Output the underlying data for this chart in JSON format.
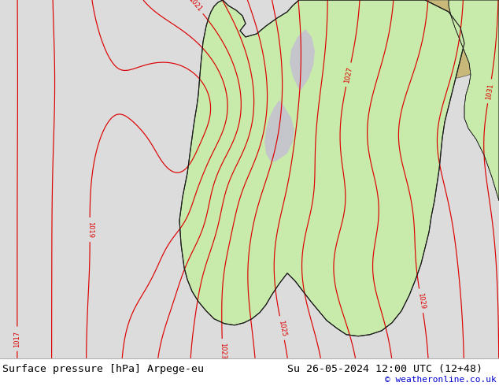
{
  "title_left": "Surface pressure [hPa] Arpege-eu",
  "title_right": "Su 26-05-2024 12:00 UTC (12+48)",
  "credit": "© weatheronline.co.uk",
  "bg_color": "#dcdcdc",
  "land_green": "#c8eaaa",
  "land_beige": "#c8b87a",
  "sea_color": "#d0d0d8",
  "contour_color": "#dd0000",
  "font_size_title": 9.5,
  "font_size_credit": 8
}
